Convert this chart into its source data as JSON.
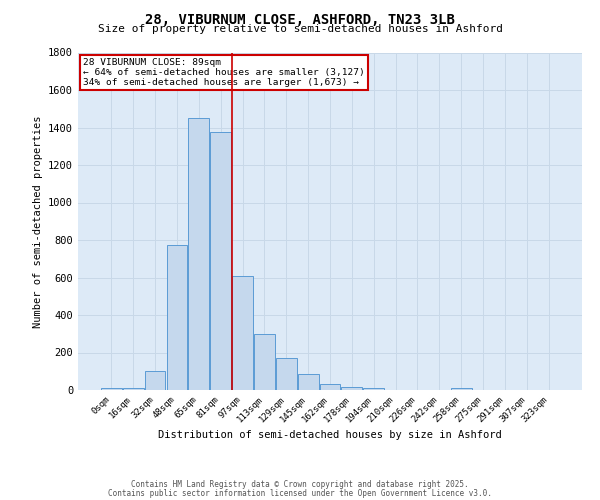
{
  "title1": "28, VIBURNUM CLOSE, ASHFORD, TN23 3LB",
  "title2": "Size of property relative to semi-detached houses in Ashford",
  "xlabel": "Distribution of semi-detached houses by size in Ashford",
  "ylabel": "Number of semi-detached properties",
  "bar_labels": [
    "0sqm",
    "16sqm",
    "32sqm",
    "48sqm",
    "65sqm",
    "81sqm",
    "97sqm",
    "113sqm",
    "129sqm",
    "145sqm",
    "162sqm",
    "178sqm",
    "194sqm",
    "210sqm",
    "226sqm",
    "242sqm",
    "258sqm",
    "275sqm",
    "291sqm",
    "307sqm",
    "323sqm"
  ],
  "bar_heights": [
    10,
    10,
    100,
    775,
    1450,
    1375,
    610,
    300,
    170,
    85,
    30,
    15,
    10,
    2,
    2,
    2,
    10,
    0,
    0,
    0,
    0
  ],
  "bar_color": "#c5d8ed",
  "bar_edge_color": "#5b9bd5",
  "grid_color": "#c8d8e8",
  "vline_x": 5.5,
  "vline_color": "#cc0000",
  "annotation_box_color": "#cc0000",
  "annotation_text_line1": "28 VIBURNUM CLOSE: 89sqm",
  "annotation_text_line2": "← 64% of semi-detached houses are smaller (3,127)",
  "annotation_text_line3": "34% of semi-detached houses are larger (1,673) →",
  "ylim": [
    0,
    1800
  ],
  "yticks": [
    0,
    200,
    400,
    600,
    800,
    1000,
    1200,
    1400,
    1600,
    1800
  ],
  "footer1": "Contains HM Land Registry data © Crown copyright and database right 2025.",
  "footer2": "Contains public sector information licensed under the Open Government Licence v3.0.",
  "bg_color": "#ffffff",
  "plot_bg_color": "#ddeaf7"
}
